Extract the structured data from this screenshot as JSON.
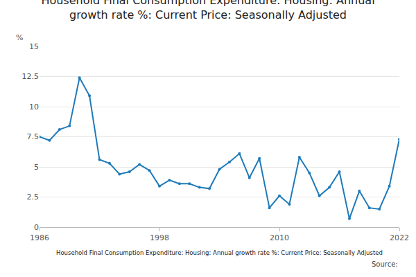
{
  "chart_data": {
    "type": "line",
    "title": "Household Final Consumption Expenditure: Housing: Annual growth rate %: Current Price: Seasonally Adjusted",
    "ylabel": "%",
    "caption": "Household Final Consumption Expenditure: Housing: Annual growth rate %: Current Price: Seasonally Adjusted",
    "source": "Source:",
    "x": [
      1986,
      1987,
      1988,
      1989,
      1990,
      1991,
      1992,
      1993,
      1994,
      1995,
      1996,
      1997,
      1998,
      1999,
      2000,
      2001,
      2002,
      2003,
      2004,
      2005,
      2006,
      2007,
      2008,
      2009,
      2010,
      2011,
      2012,
      2013,
      2014,
      2015,
      2016,
      2017,
      2018,
      2019,
      2020,
      2021,
      2022
    ],
    "values": [
      7.5,
      7.2,
      8.1,
      8.4,
      12.4,
      10.9,
      5.6,
      5.3,
      4.4,
      4.6,
      5.2,
      4.7,
      3.4,
      3.9,
      3.6,
      3.6,
      3.3,
      3.2,
      4.8,
      5.4,
      6.1,
      4.1,
      5.7,
      1.6,
      2.6,
      1.9,
      5.8,
      4.5,
      2.6,
      3.3,
      4.6,
      0.7,
      3.0,
      1.6,
      1.5,
      3.4,
      7.3
    ],
    "color": "#1f7ab9",
    "marker": "circle",
    "xlim": [
      1986,
      2022
    ],
    "xticks": [
      1986,
      1998,
      2010,
      2022
    ],
    "ylim": [
      0,
      15
    ],
    "yticks": [
      0,
      2.5,
      5,
      7.5,
      10,
      12.5,
      15
    ],
    "grid": true
  }
}
